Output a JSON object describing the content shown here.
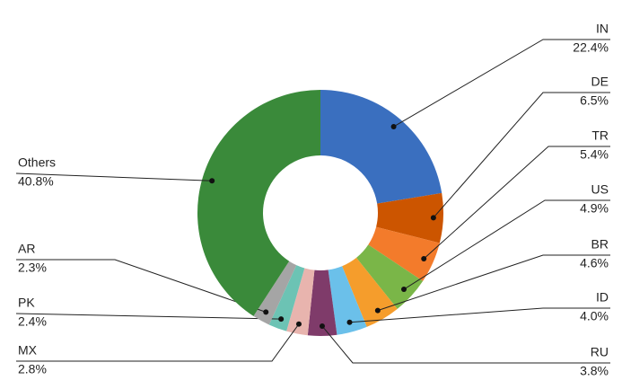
{
  "chart_data": {
    "type": "donut",
    "categories": [
      "IN",
      "DE",
      "TR",
      "US",
      "BR",
      "ID",
      "RU",
      "MX",
      "PK",
      "AR",
      "Others"
    ],
    "values": [
      22.4,
      6.5,
      5.4,
      4.9,
      4.6,
      4.0,
      3.8,
      2.8,
      2.4,
      2.3,
      40.8
    ],
    "value_labels": [
      "22.4%",
      "6.5%",
      "5.4%",
      "4.9%",
      "4.6%",
      "4.0%",
      "3.8%",
      "2.8%",
      "2.4%",
      "2.3%",
      "40.8%"
    ],
    "colors": [
      "#3a6fbf",
      "#cc5500",
      "#f37b2b",
      "#7ab648",
      "#f59d2c",
      "#6bc0ea",
      "#7f3b6a",
      "#e8b4ae",
      "#6cc3b4",
      "#a5a5a5",
      "#3a8a3a"
    ]
  }
}
